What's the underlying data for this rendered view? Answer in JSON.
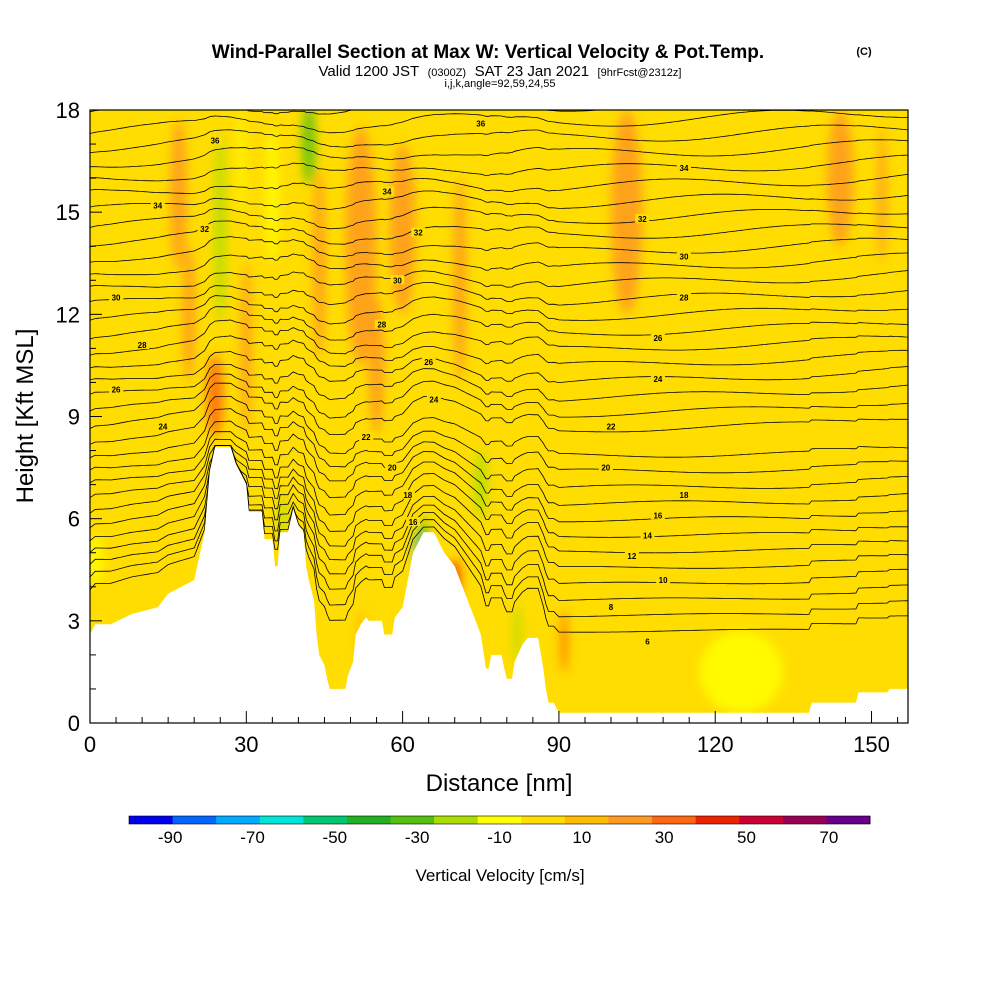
{
  "title": {
    "main": "Wind-Parallel Section at Max W: Vertical Velocity & Pot.Temp.",
    "copyright": "(C)",
    "valid_a": "Valid 1200 JST",
    "valid_b": "(0300Z)",
    "valid_c": "SAT 23 Jan 2021",
    "valid_d": "[9hrFcst@2312z]",
    "ijk": "i,j,k,angle=92,59,24,55"
  },
  "colors": {
    "terrain": "#ffffff",
    "background": "#ffdd00",
    "frame": "#000000",
    "contour": "#000000"
  },
  "chart_data": {
    "type": "heatmap",
    "xlabel": "Distance [nm]",
    "ylabel": "Height [Kft MSL]",
    "xlim": [
      0,
      157
    ],
    "ylim": [
      0,
      18
    ],
    "xticks": [
      "0",
      "30",
      "60",
      "90",
      "120",
      "150"
    ],
    "xtick_values": [
      0,
      30,
      60,
      90,
      120,
      150
    ],
    "yticks": [
      "0",
      "3",
      "6",
      "9",
      "12",
      "15",
      "18"
    ],
    "ytick_values": [
      0,
      3,
      6,
      9,
      12,
      15,
      18
    ],
    "colorbar": {
      "label": "Vertical Velocity [cm/s]",
      "ticks": [
        "-90",
        "-70",
        "-50",
        "-30",
        "-10",
        "10",
        "30",
        "50",
        "70"
      ],
      "tick_values": [
        -90,
        -70,
        -50,
        -30,
        -10,
        10,
        30,
        50,
        70
      ],
      "range": [
        -100,
        80
      ],
      "colors": [
        "#0000ee",
        "#0066ff",
        "#00aaff",
        "#00e5d6",
        "#00c870",
        "#22b022",
        "#55c010",
        "#aadd00",
        "#ffff00",
        "#ffdd00",
        "#ffbb00",
        "#ff9922",
        "#ff6611",
        "#ee2200",
        "#cc0033",
        "#990055",
        "#660088"
      ]
    },
    "terrain": [
      [
        0,
        2.6
      ],
      [
        1,
        2.9
      ],
      [
        4,
        2.9
      ],
      [
        8,
        3.2
      ],
      [
        13,
        3.4
      ],
      [
        15,
        3.8
      ],
      [
        20,
        4.2
      ],
      [
        22,
        5.6
      ],
      [
        23,
        7.4
      ],
      [
        24,
        8.1
      ],
      [
        27,
        8.1
      ],
      [
        28,
        7.6
      ],
      [
        30,
        7.0
      ],
      [
        30.5,
        6.2
      ],
      [
        33,
        6.2
      ],
      [
        33.5,
        5.4
      ],
      [
        35,
        5.4
      ],
      [
        35.5,
        4.6
      ],
      [
        36,
        4.6
      ],
      [
        36.5,
        5.6
      ],
      [
        38,
        5.6
      ],
      [
        39,
        6.3
      ],
      [
        40,
        5.8
      ],
      [
        41,
        5.6
      ],
      [
        41.5,
        4.6
      ],
      [
        42,
        4.2
      ],
      [
        43,
        3.6
      ],
      [
        43.5,
        2.6
      ],
      [
        44,
        2.0
      ],
      [
        45,
        1.7
      ],
      [
        45.5,
        1.3
      ],
      [
        46,
        1.0
      ],
      [
        49,
        1.0
      ],
      [
        49.5,
        1.4
      ],
      [
        50.5,
        1.8
      ],
      [
        51,
        2.6
      ],
      [
        52,
        2.9
      ],
      [
        53,
        3.1
      ],
      [
        53.5,
        3.0
      ],
      [
        56,
        3.0
      ],
      [
        56.5,
        2.6
      ],
      [
        58,
        2.6
      ],
      [
        58.5,
        3.1
      ],
      [
        60,
        3.4
      ],
      [
        61,
        4.2
      ],
      [
        62,
        5.0
      ],
      [
        64,
        5.6
      ],
      [
        66,
        5.6
      ],
      [
        67,
        5.3
      ],
      [
        68,
        5.0
      ],
      [
        70,
        4.6
      ],
      [
        72,
        3.8
      ],
      [
        74,
        3.0
      ],
      [
        75,
        2.6
      ],
      [
        76,
        1.6
      ],
      [
        76.5,
        1.6
      ],
      [
        77,
        2.0
      ],
      [
        79,
        2.0
      ],
      [
        79.5,
        1.6
      ],
      [
        80,
        1.3
      ],
      [
        81,
        1.3
      ],
      [
        81.5,
        1.8
      ],
      [
        83,
        2.3
      ],
      [
        84,
        2.5
      ],
      [
        86,
        2.5
      ],
      [
        87,
        1.6
      ],
      [
        87.5,
        1.0
      ],
      [
        88,
        0.6
      ],
      [
        89,
        0.6
      ],
      [
        90,
        0.3
      ],
      [
        138,
        0.3
      ],
      [
        138.5,
        0.6
      ],
      [
        143,
        0.6
      ],
      [
        147,
        0.6
      ],
      [
        147.5,
        0.9
      ],
      [
        153,
        0.9
      ],
      [
        153.5,
        1.0
      ],
      [
        157,
        1.0
      ]
    ],
    "theta_contours": [
      {
        "value": "6",
        "lx": 107,
        "ly": 2.4
      },
      {
        "value": "8",
        "lx": 100,
        "ly": 3.4
      },
      {
        "value": "10",
        "lx": 110,
        "ly": 4.2
      },
      {
        "value": "12",
        "lx": 104,
        "ly": 4.9
      },
      {
        "value": "14",
        "lx": 107,
        "ly": 5.5
      },
      {
        "value": "16",
        "lx": 109,
        "ly": 6.1
      },
      {
        "value": "16",
        "lx": 62,
        "ly": 5.9
      },
      {
        "value": "18",
        "lx": 61,
        "ly": 6.7
      },
      {
        "value": "18",
        "lx": 114,
        "ly": 6.7
      },
      {
        "value": "20",
        "lx": 58,
        "ly": 7.5
      },
      {
        "value": "20",
        "lx": 99,
        "ly": 7.5
      },
      {
        "value": "22",
        "lx": 53,
        "ly": 8.4
      },
      {
        "value": "22",
        "lx": 100,
        "ly": 8.7
      },
      {
        "value": "24",
        "lx": 14,
        "ly": 8.7
      },
      {
        "value": "24",
        "lx": 66,
        "ly": 9.5
      },
      {
        "value": "24",
        "lx": 109,
        "ly": 10.1
      },
      {
        "value": "26",
        "lx": 5,
        "ly": 9.8
      },
      {
        "value": "26",
        "lx": 65,
        "ly": 10.6
      },
      {
        "value": "26",
        "lx": 109,
        "ly": 11.3
      },
      {
        "value": "28",
        "lx": 10,
        "ly": 11.1
      },
      {
        "value": "28",
        "lx": 56,
        "ly": 11.7
      },
      {
        "value": "28",
        "lx": 114,
        "ly": 12.5
      },
      {
        "value": "30",
        "lx": 5,
        "ly": 12.5
      },
      {
        "value": "30",
        "lx": 59,
        "ly": 13.0
      },
      {
        "value": "30",
        "lx": 114,
        "ly": 13.7
      },
      {
        "value": "32",
        "lx": 22,
        "ly": 14.5
      },
      {
        "value": "32",
        "lx": 63,
        "ly": 14.4
      },
      {
        "value": "32",
        "lx": 106,
        "ly": 14.8
      },
      {
        "value": "34",
        "lx": 13,
        "ly": 15.2
      },
      {
        "value": "34",
        "lx": 57,
        "ly": 15.6
      },
      {
        "value": "34",
        "lx": 114,
        "ly": 16.3
      },
      {
        "value": "36",
        "lx": 24,
        "ly": 17.1
      },
      {
        "value": "36",
        "lx": 75,
        "ly": 17.6
      }
    ],
    "velocity_features": [
      {
        "x": 17,
        "y": 15.5,
        "rx": 1.6,
        "ry": 2.2,
        "w": 25
      },
      {
        "x": 19,
        "y": 12.0,
        "rx": 1.2,
        "ry": 2.0,
        "w": 20
      },
      {
        "x": 24,
        "y": 9.6,
        "rx": 1.6,
        "ry": 1.2,
        "w": 30
      },
      {
        "x": 25,
        "y": 14.5,
        "rx": 1.0,
        "ry": 2.8,
        "w": -25
      },
      {
        "x": 29,
        "y": 16.5,
        "rx": 0.6,
        "ry": 1.5,
        "w": -10
      },
      {
        "x": 30,
        "y": 11.0,
        "rx": 1.0,
        "ry": 2.5,
        "w": 20
      },
      {
        "x": 35,
        "y": 15.5,
        "rx": 1.2,
        "ry": 2.0,
        "w": -10
      },
      {
        "x": 37,
        "y": 6.0,
        "rx": 0.7,
        "ry": 0.7,
        "w": -25
      },
      {
        "x": 42,
        "y": 17.0,
        "rx": 1.3,
        "ry": 1.2,
        "w": -30
      },
      {
        "x": 44,
        "y": 13.5,
        "rx": 1.2,
        "ry": 2.8,
        "w": 20
      },
      {
        "x": 52,
        "y": 14.0,
        "rx": 3.0,
        "ry": 3.5,
        "w": 25
      },
      {
        "x": 55,
        "y": 10.5,
        "rx": 1.5,
        "ry": 2.0,
        "w": 20
      },
      {
        "x": 60,
        "y": 14.5,
        "rx": 2.5,
        "ry": 2.5,
        "w": 22
      },
      {
        "x": 63,
        "y": 5.0,
        "rx": 0.5,
        "ry": 0.6,
        "w": -75
      },
      {
        "x": 64,
        "y": 5.5,
        "rx": 0.6,
        "ry": 0.5,
        "w": -40
      },
      {
        "x": 70,
        "y": 4.2,
        "rx": 1.0,
        "ry": 0.6,
        "w": 45
      },
      {
        "x": 71,
        "y": 13.0,
        "rx": 1.2,
        "ry": 3.0,
        "w": 25
      },
      {
        "x": 75,
        "y": 7.0,
        "rx": 1.2,
        "ry": 1.0,
        "w": -25
      },
      {
        "x": 82,
        "y": 2.6,
        "rx": 0.6,
        "ry": 0.9,
        "w": -25
      },
      {
        "x": 91,
        "y": 2.4,
        "rx": 0.6,
        "ry": 0.9,
        "w": 30
      },
      {
        "x": 103,
        "y": 15.0,
        "rx": 3.0,
        "ry": 3.0,
        "w": 18
      },
      {
        "x": 144,
        "y": 16.0,
        "rx": 2.5,
        "ry": 2.0,
        "w": 18
      },
      {
        "x": 152,
        "y": 15.5,
        "rx": 0.8,
        "ry": 2.0,
        "w": 20
      },
      {
        "x": 1,
        "y": 4.8,
        "rx": 1.5,
        "ry": 0.7,
        "w": -15
      },
      {
        "x": 52,
        "y": 2.5,
        "rx": 0.8,
        "ry": 0.8,
        "w": 15
      },
      {
        "x": 125,
        "y": 1.5,
        "rx": 8.0,
        "ry": 1.2,
        "w": -5
      }
    ]
  }
}
